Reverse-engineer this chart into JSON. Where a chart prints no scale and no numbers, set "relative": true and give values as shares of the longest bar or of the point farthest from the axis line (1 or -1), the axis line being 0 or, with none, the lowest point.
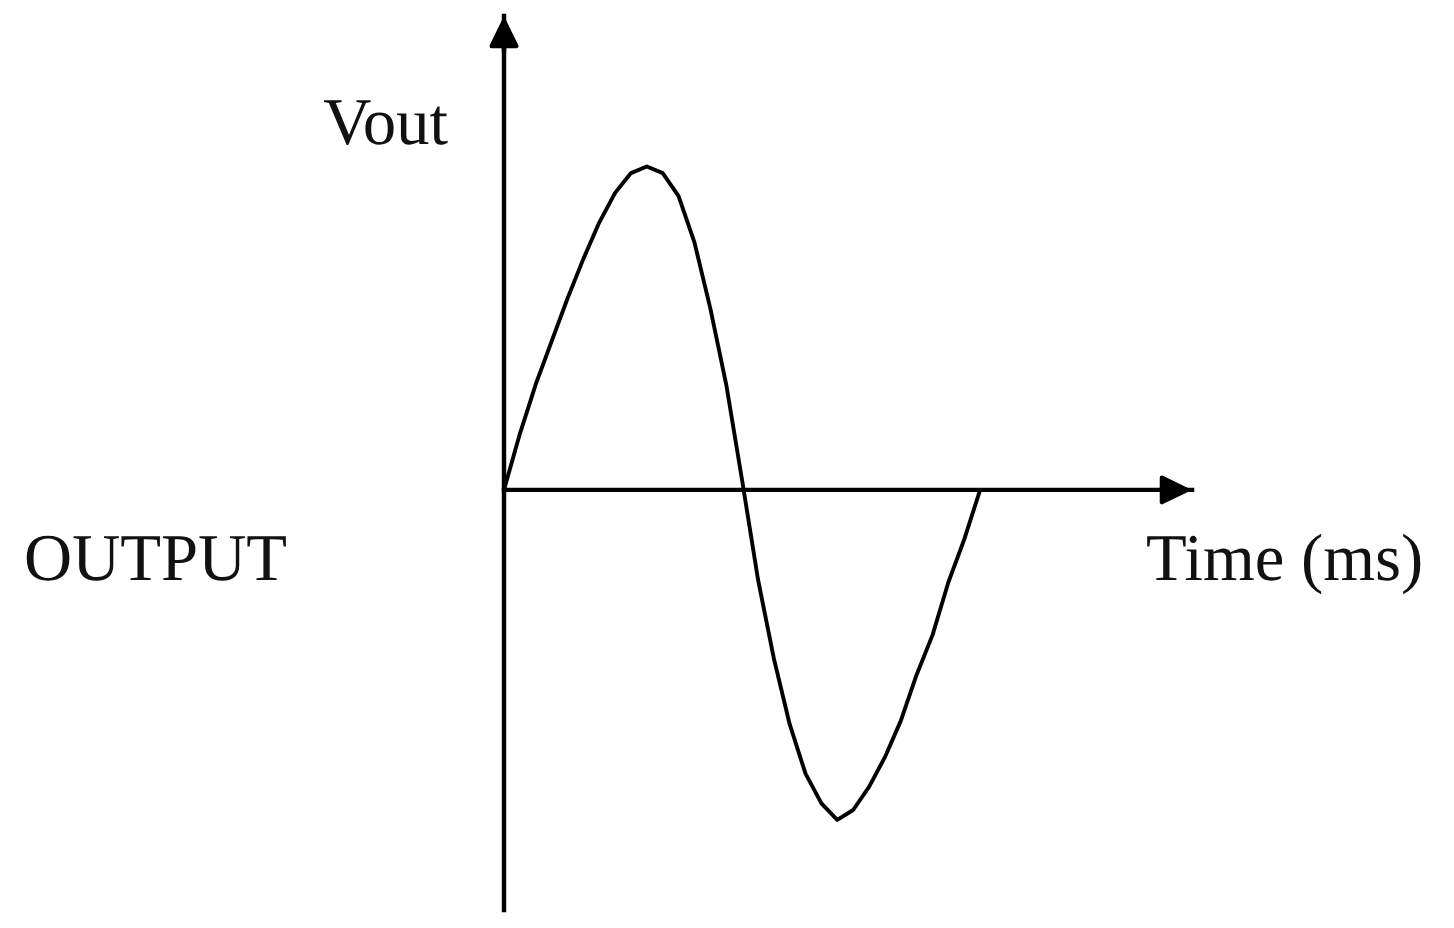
{
  "chart_data": {
    "type": "line",
    "relative": true,
    "xlabel": "Time (ms)",
    "ylabel": "Vout",
    "annotations": [
      "OUTPUT"
    ],
    "categories": [
      null,
      null,
      null,
      null,
      null,
      null,
      null,
      null,
      null,
      null,
      null,
      null,
      null,
      null,
      null,
      null,
      null,
      null,
      null,
      null,
      null,
      null,
      null,
      null,
      null,
      null,
      null,
      null,
      null,
      null,
      null
    ],
    "values": [
      0,
      0.17,
      0.32,
      0.45,
      0.58,
      0.7,
      0.81,
      0.9,
      0.96,
      0.98,
      0.96,
      0.89,
      0.75,
      0.55,
      0.32,
      0.03,
      -0.27,
      -0.51,
      -0.71,
      -0.86,
      -0.95,
      -1,
      -0.97,
      -0.9,
      -0.81,
      -0.7,
      -0.56,
      -0.44,
      -0.28,
      -0.15,
      0
    ],
    "color": "#000000"
  }
}
